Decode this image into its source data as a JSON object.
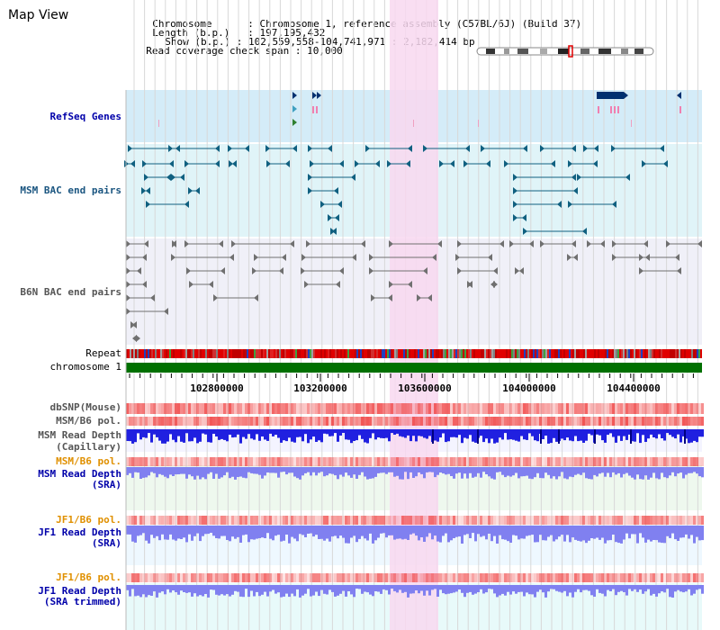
{
  "page": {
    "title": "Map View"
  },
  "info": {
    "chromosome_key": "Chromosome",
    "chromosome_value": ": Chromosome 1, reference assembly (C57BL/6J) (Build 37)",
    "length_key": "Length (b.p.)",
    "length_value": ": 197,195,432",
    "show_key": "Show (b.p.)",
    "show_value": ": 102,559,558-104,741,971 : 2,182,414 bp",
    "coverage_key": "Read coverage check span",
    "coverage_value": ": 10,000"
  },
  "tracks": {
    "refseq": "RefSeq Genes",
    "msm_bac": "MSM BAC end pairs",
    "b6n_bac": "B6N BAC end pairs",
    "repeat": "Repeat",
    "chromosome": "chromosome 1",
    "dbsnp": "dbSNP(Mouse)",
    "msm_b6_pol_1": "MSM/B6 pol.",
    "msm_depth_cap_1": "MSM Read Depth",
    "msm_depth_cap_2": "(Capillary)",
    "msm_b6_pol_2": "MSM/B6 pol.",
    "msm_depth_sra_1": "MSM Read Depth",
    "msm_depth_sra_2": "(SRA)",
    "jf1_pol_1": "JF1/B6 pol.",
    "jf1_depth_sra_1": "JF1 Read Depth",
    "jf1_depth_sra_2": "(SRA)",
    "jf1_pol_2": "JF1/B6 pol.",
    "jf1_depth_trim_1": "JF1 Read Depth",
    "jf1_depth_trim_2": "(SRA trimmed)"
  },
  "axis": {
    "ticks": [
      "102800000",
      "103200000",
      "103600000",
      "104000000",
      "104400000"
    ]
  },
  "colors": {
    "refseq_bg": "#d4ecf8",
    "msm_bg": "#e0f4f8",
    "b6n_bg": "#f0f0f8",
    "highlight": "#f8d8f0",
    "chromosome": "#007000",
    "snp": "#f04040",
    "depth_dark": "#2020e0",
    "depth_light": "#8080f0",
    "gene": "#003070",
    "msm_feature": "#106080",
    "b6n_feature": "#707070"
  }
}
